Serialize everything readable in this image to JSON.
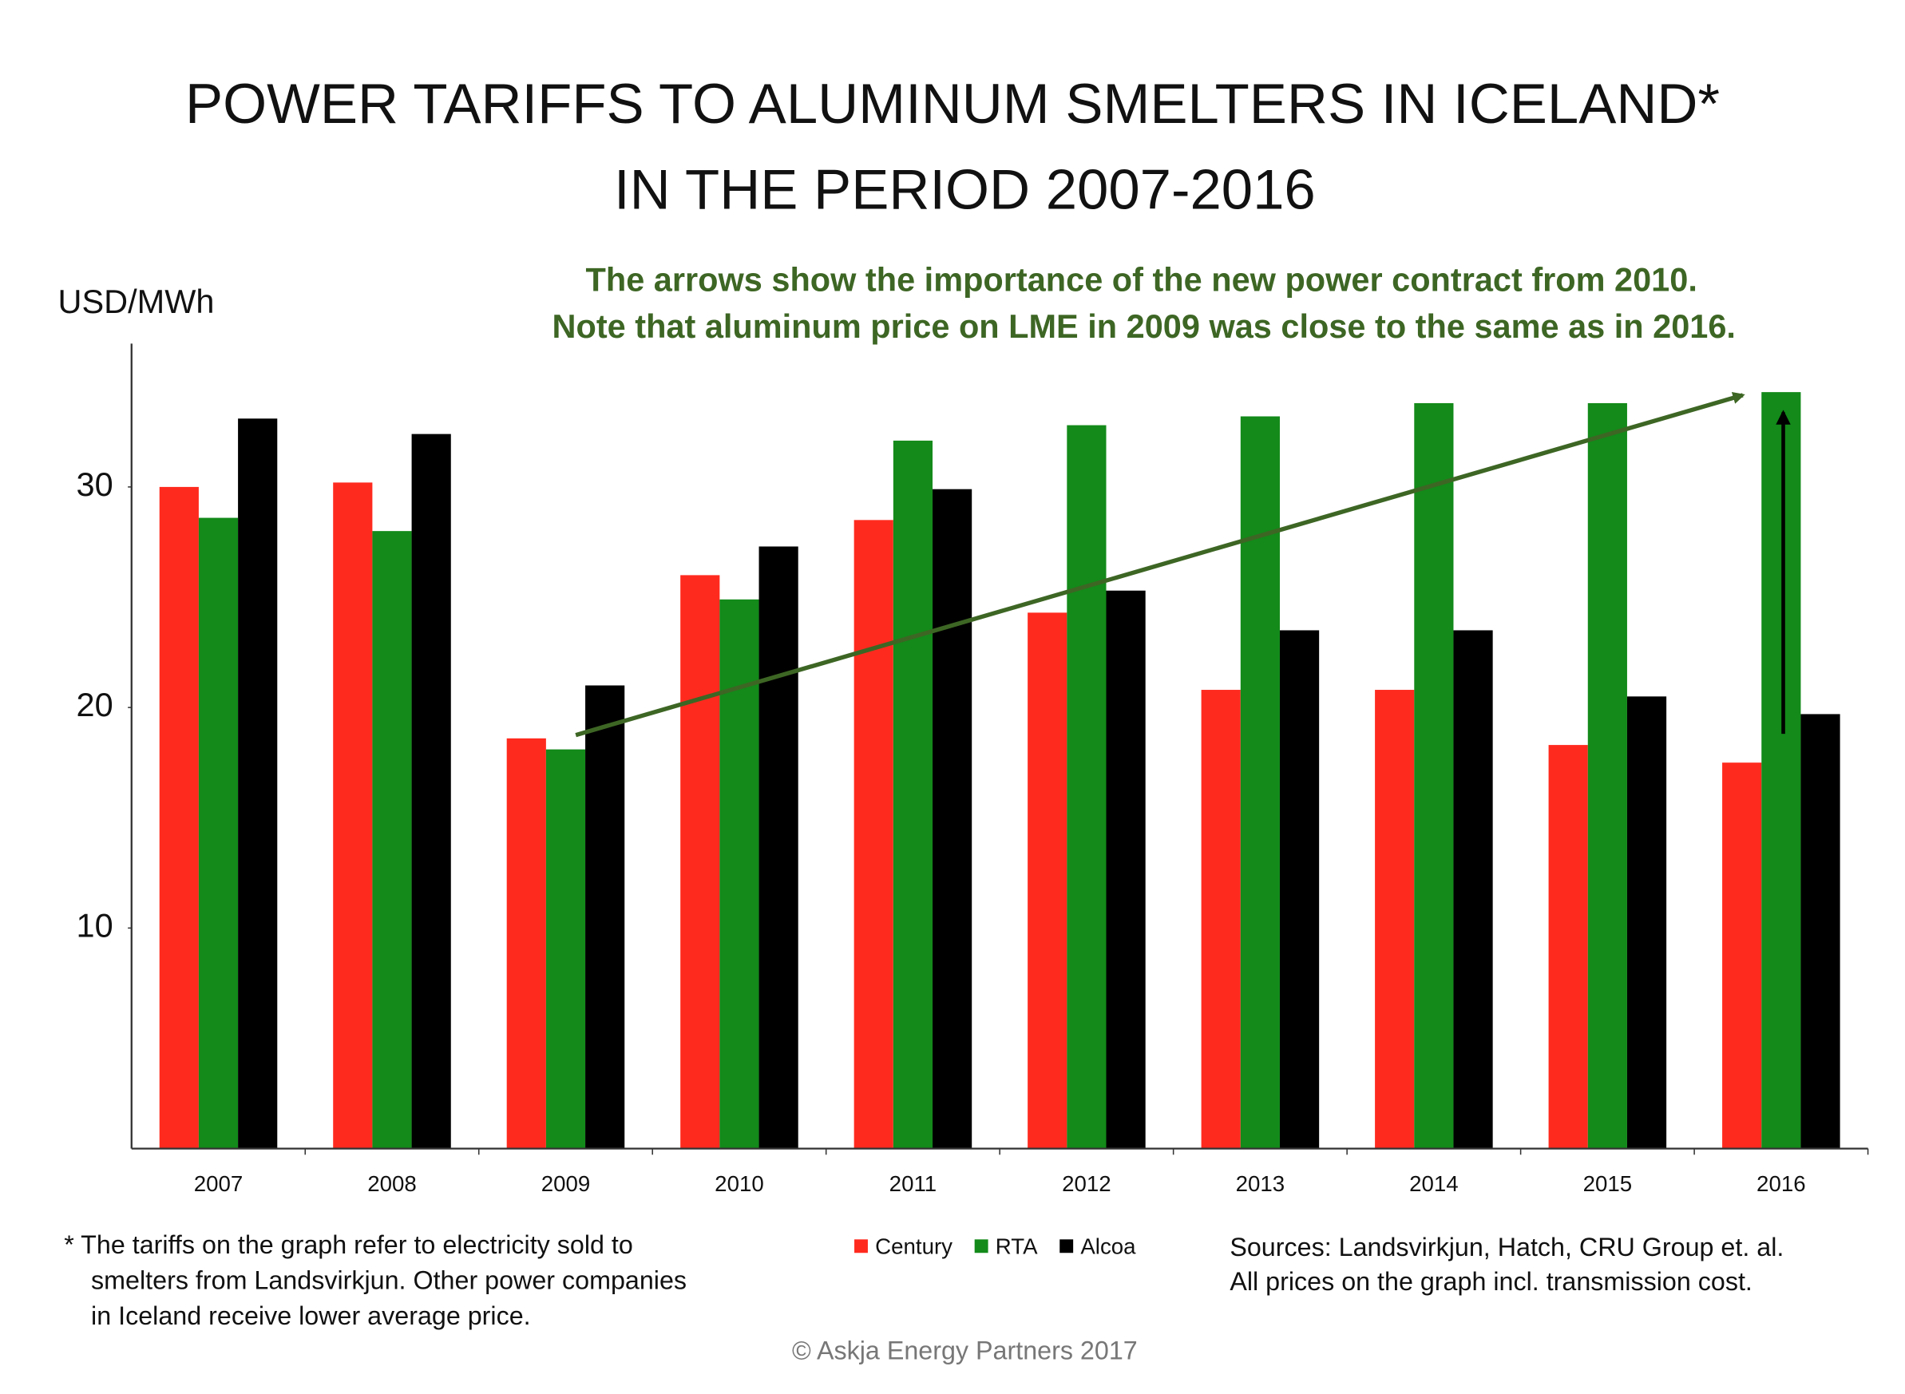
{
  "chart_data": {
    "type": "bar",
    "title": [
      "POWER TARIFFS TO ALUMINUM SMELTERS IN ICELAND*",
      "IN THE PERIOD 2007-2016"
    ],
    "annotation": [
      "The arrows show the importance of the new power contract from 2010.",
      "Note that aluminum price on LME in 2009 was close to the same as in 2016."
    ],
    "y_label": "USD/MWh",
    "categories": [
      "2007",
      "2008",
      "2009",
      "2010",
      "2011",
      "2012",
      "2013",
      "2014",
      "2015",
      "2016"
    ],
    "series": [
      {
        "name": "Century",
        "color": "#ff2a1e",
        "values": [
          30.0,
          30.2,
          18.6,
          26.0,
          28.5,
          24.3,
          20.8,
          20.8,
          18.3,
          17.5
        ]
      },
      {
        "name": "RTA",
        "color": "#138a1a",
        "values": [
          28.6,
          28.0,
          18.1,
          24.9,
          32.1,
          32.8,
          33.2,
          33.8,
          33.8,
          34.3
        ]
      },
      {
        "name": "Alcoa",
        "color": "#000000",
        "values": [
          33.1,
          32.4,
          21.0,
          27.3,
          29.9,
          25.3,
          23.5,
          23.5,
          20.5,
          19.7
        ]
      }
    ],
    "ylim": [
      0,
      36.5
    ],
    "yticks": [
      10,
      20,
      30
    ],
    "grid": false,
    "footnote": [
      "*  The tariffs on the graph refer to electricity sold to",
      "smelters from Landsvirkjun. Other power companies",
      "in Iceland receive lower average price."
    ],
    "sources": [
      "Sources: Landsvirkjun, Hatch, CRU Group et. al.",
      "All prices on the graph incl. transmission cost."
    ],
    "copyright": "© Askja Energy Partners 2017"
  }
}
